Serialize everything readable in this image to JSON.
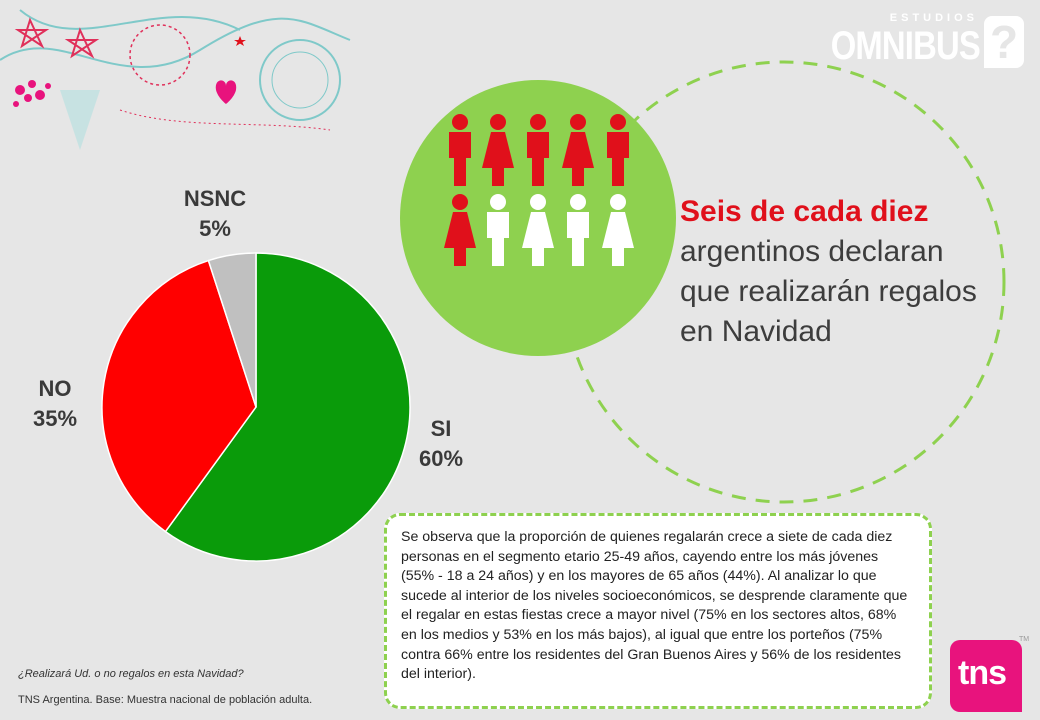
{
  "logo": {
    "small": "ESTUDIOS",
    "main": "OMNIBUS",
    "mark": "?"
  },
  "chart_data": {
    "type": "pie",
    "slices": [
      {
        "label": "SI",
        "value": 60,
        "display": "60%",
        "color": "#0a9b0a"
      },
      {
        "label": "NO",
        "value": 35,
        "display": "35%",
        "color": "#ff0000"
      },
      {
        "label": "NSNC",
        "value": 5,
        "display": "5%",
        "color": "#c0c0c0"
      }
    ]
  },
  "headline": {
    "highlight": "Seis de cada diez",
    "rest": "argentinos declaran que realizarán regalos en Navidad"
  },
  "body_text": "Se observa que la proporción de quienes regalarán crece a siete de cada diez personas en el segmento etario 25-49 años, cayendo entre los más jóvenes (55% - 18 a 24 años) y en los mayores de 65 años (44%). Al analizar lo que sucede al interior de los niveles socioeconómicos, se desprende claramente que el regalar en estas fiestas crece a mayor nivel (75% en los sectores altos, 68% en los medios y 53% en los más bajos), al igual que entre los porteños (75% contra 66% entre los residentes del Gran Buenos Aires y 56% de los residentes del interior).",
  "footer": {
    "question": "¿Realizará Ud. o no regalos en esta Navidad?",
    "source": "TNS Argentina.  Base: Muestra nacional de población adulta."
  },
  "brand": {
    "name": "tns",
    "tm": "TM"
  },
  "pictogram": {
    "total": 10,
    "highlighted": 6,
    "highlight_color": "#e0101b",
    "other_color": "#ffffff"
  },
  "colors": {
    "accent_green": "#8ed14f",
    "accent_red": "#e0101b",
    "brand_pink": "#e8137d"
  }
}
